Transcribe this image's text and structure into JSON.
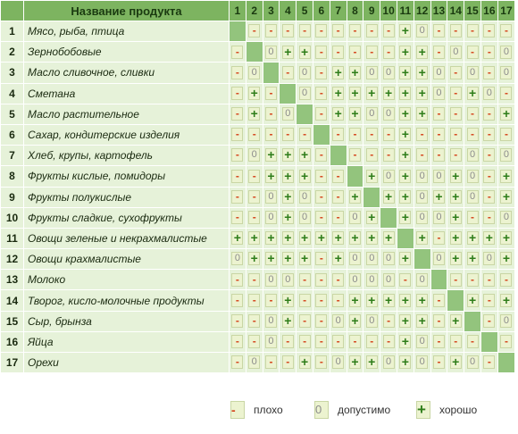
{
  "header": {
    "name_col": "Название продукта",
    "col_numbers": [
      "1",
      "2",
      "3",
      "4",
      "5",
      "6",
      "7",
      "8",
      "9",
      "10",
      "11",
      "12",
      "13",
      "14",
      "15",
      "16",
      "17"
    ]
  },
  "symbols": {
    "bad": "-",
    "ok": "0",
    "good": "+"
  },
  "rows": [
    {
      "num": "1",
      "name": "Мясо, рыба, птица",
      "cells": [
        "",
        "-",
        "-",
        "-",
        "-",
        "-",
        "-",
        "-",
        "-",
        "-",
        "+",
        "0",
        "-",
        "-",
        "-",
        "-",
        "-"
      ]
    },
    {
      "num": "2",
      "name": "Зернобобовые",
      "cells": [
        "-",
        "",
        "0",
        "+",
        "+",
        "-",
        "-",
        "-",
        "-",
        "-",
        "+",
        "+",
        "-",
        "0",
        "-",
        "-",
        "0"
      ]
    },
    {
      "num": "3",
      "name": "Масло сливочное, сливки",
      "cells": [
        "-",
        "0",
        "",
        "-",
        "0",
        "-",
        "+",
        "+",
        "0",
        "0",
        "+",
        "+",
        "0",
        "-",
        "0",
        "-",
        "0"
      ]
    },
    {
      "num": "4",
      "name": "Сметана",
      "cells": [
        "-",
        "+",
        "-",
        "",
        "0",
        "-",
        "+",
        "+",
        "+",
        "+",
        "+",
        "+",
        "0",
        "-",
        "+",
        "0",
        "-"
      ]
    },
    {
      "num": "5",
      "name": "Масло растительное",
      "cells": [
        "-",
        "+",
        "-",
        "0",
        "",
        "-",
        "+",
        "+",
        "0",
        "0",
        "+",
        "+",
        "-",
        "-",
        "-",
        "-",
        "+"
      ]
    },
    {
      "num": "6",
      "name": "Сахар, кондитерские изделия",
      "cells": [
        "-",
        "-",
        "-",
        "-",
        "-",
        "",
        "-",
        "-",
        "-",
        "-",
        "+",
        "-",
        "-",
        "-",
        "-",
        "-",
        "-"
      ]
    },
    {
      "num": "7",
      "name": "Хлеб, крупы, картофель",
      "cells": [
        "-",
        "0",
        "+",
        "+",
        "+",
        "-",
        "",
        "-",
        "-",
        "-",
        "+",
        "-",
        "-",
        "-",
        "0",
        "-",
        "0"
      ]
    },
    {
      "num": "8",
      "name": "Фрукты кислые, помидоры",
      "cells": [
        "-",
        "-",
        "+",
        "+",
        "+",
        "-",
        "-",
        "",
        "+",
        "0",
        "+",
        "0",
        "0",
        "+",
        "0",
        "-",
        "+"
      ]
    },
    {
      "num": "9",
      "name": "Фрукты полукислые",
      "cells": [
        "-",
        "-",
        "0",
        "+",
        "0",
        "-",
        "-",
        "+",
        "",
        "+",
        "+",
        "0",
        "+",
        "+",
        "0",
        "-",
        "+"
      ]
    },
    {
      "num": "10",
      "name": "Фрукты сладкие, сухофрукты",
      "cells": [
        "-",
        "-",
        "0",
        "+",
        "0",
        "-",
        "-",
        "0",
        "+",
        "",
        "+",
        "0",
        "0",
        "+",
        "-",
        "-",
        "0"
      ]
    },
    {
      "num": "11",
      "name": "Овощи зеленые и некрахмалистые",
      "cells": [
        "+",
        "+",
        "+",
        "+",
        "+",
        "+",
        "+",
        "+",
        "+",
        "+",
        "",
        "+",
        "-",
        "+",
        "+",
        "+",
        "+"
      ]
    },
    {
      "num": "12",
      "name": "Овощи крахмалистые",
      "cells": [
        "0",
        "+",
        "+",
        "+",
        "+",
        "-",
        "+",
        "0",
        "0",
        "0",
        "+",
        "",
        "0",
        "+",
        "+",
        "0",
        "+"
      ]
    },
    {
      "num": "13",
      "name": "Молоко",
      "cells": [
        "-",
        "-",
        "0",
        "0",
        "-",
        "-",
        "-",
        "0",
        "0",
        "0",
        "-",
        "0",
        "",
        "-",
        "-",
        "-",
        "-"
      ]
    },
    {
      "num": "14",
      "name": "Творог, кисло-молочные продукты",
      "cells": [
        "-",
        "-",
        "-",
        "+",
        "-",
        "-",
        "-",
        "+",
        "+",
        "+",
        "+",
        "+",
        "-",
        "",
        "+",
        "-",
        "+"
      ]
    },
    {
      "num": "15",
      "name": "Сыр, брынза",
      "cells": [
        "-",
        "-",
        "0",
        "+",
        "-",
        "-",
        "0",
        "+",
        "0",
        "-",
        "+",
        "+",
        "-",
        "+",
        "",
        "-",
        "0"
      ]
    },
    {
      "num": "16",
      "name": "Яйца",
      "cells": [
        "-",
        "-",
        "0",
        "-",
        "-",
        "-",
        "-",
        "-",
        "-",
        "-",
        "+",
        "0",
        "-",
        "-",
        "-",
        "",
        "-"
      ]
    },
    {
      "num": "17",
      "name": "Орехи",
      "cells": [
        "-",
        "0",
        "-",
        "-",
        "+",
        "-",
        "0",
        "+",
        "+",
        "0",
        "+",
        "0",
        "-",
        "+",
        "0",
        "-",
        ""
      ]
    }
  ],
  "legend": [
    {
      "symbol": "-",
      "label": "плохо"
    },
    {
      "symbol": "0",
      "label": "допустимо"
    },
    {
      "symbol": "+",
      "label": "хорошо"
    }
  ]
}
